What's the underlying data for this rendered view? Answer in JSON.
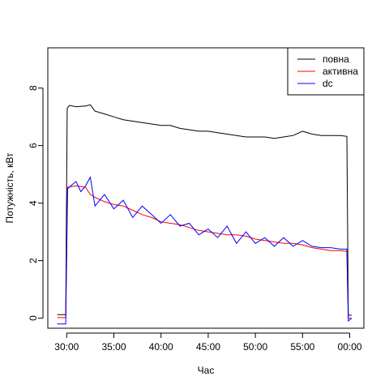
{
  "chart_data": {
    "type": "line",
    "title": "",
    "xlabel": "Час",
    "ylabel": "Потужність, кВт",
    "x_unit": "minute",
    "xlim": [
      28,
      61.5
    ],
    "ylim": [
      -0.35,
      9.4
    ],
    "x_ticks": [
      {
        "value": 30,
        "label": "30:00"
      },
      {
        "value": 35,
        "label": "35:00"
      },
      {
        "value": 40,
        "label": "40:00"
      },
      {
        "value": 45,
        "label": "45:00"
      },
      {
        "value": 50,
        "label": "50:00"
      },
      {
        "value": 55,
        "label": "55:00"
      },
      {
        "value": 60,
        "label": "00:00"
      }
    ],
    "y_ticks": [
      0,
      2,
      4,
      6,
      8
    ],
    "grid": false,
    "legend_position": "top-right",
    "series": [
      {
        "name": "повна",
        "color": "#000000",
        "points": [
          [
            29,
            0.12
          ],
          [
            29.9,
            0.12
          ],
          [
            30.05,
            7.3
          ],
          [
            30.3,
            7.4
          ],
          [
            31,
            7.35
          ],
          [
            32,
            7.38
          ],
          [
            32.5,
            7.42
          ],
          [
            33,
            7.2
          ],
          [
            34,
            7.1
          ],
          [
            35,
            7.0
          ],
          [
            36,
            6.9
          ],
          [
            37,
            6.85
          ],
          [
            38,
            6.8
          ],
          [
            39,
            6.75
          ],
          [
            40,
            6.7
          ],
          [
            41,
            6.7
          ],
          [
            42,
            6.6
          ],
          [
            43,
            6.55
          ],
          [
            44,
            6.5
          ],
          [
            45,
            6.5
          ],
          [
            46,
            6.45
          ],
          [
            47,
            6.4
          ],
          [
            48,
            6.35
          ],
          [
            49,
            6.3
          ],
          [
            50,
            6.3
          ],
          [
            51,
            6.3
          ],
          [
            52,
            6.25
          ],
          [
            53,
            6.3
          ],
          [
            54,
            6.35
          ],
          [
            55,
            6.5
          ],
          [
            56,
            6.4
          ],
          [
            57,
            6.35
          ],
          [
            58,
            6.35
          ],
          [
            59,
            6.35
          ],
          [
            59.7,
            6.32
          ],
          [
            59.85,
            0.1
          ],
          [
            60.2,
            0.1
          ]
        ]
      },
      {
        "name": "активна",
        "color": "#ff0000",
        "points": [
          [
            29,
            0.02
          ],
          [
            29.9,
            0.02
          ],
          [
            30.1,
            4.55
          ],
          [
            31,
            4.6
          ],
          [
            32,
            4.55
          ],
          [
            32.5,
            4.3
          ],
          [
            33,
            4.2
          ],
          [
            34,
            4.05
          ],
          [
            35,
            3.95
          ],
          [
            36,
            3.9
          ],
          [
            37,
            3.75
          ],
          [
            38,
            3.6
          ],
          [
            39,
            3.5
          ],
          [
            40,
            3.35
          ],
          [
            41,
            3.3
          ],
          [
            42,
            3.25
          ],
          [
            43,
            3.15
          ],
          [
            44,
            3.05
          ],
          [
            45,
            3.0
          ],
          [
            46,
            2.95
          ],
          [
            47,
            2.9
          ],
          [
            48,
            2.9
          ],
          [
            49,
            2.85
          ],
          [
            50,
            2.75
          ],
          [
            51,
            2.7
          ],
          [
            52,
            2.65
          ],
          [
            53,
            2.6
          ],
          [
            54,
            2.6
          ],
          [
            55,
            2.55
          ],
          [
            56,
            2.45
          ],
          [
            57,
            2.4
          ],
          [
            58,
            2.35
          ],
          [
            59,
            2.35
          ],
          [
            59.7,
            2.32
          ],
          [
            59.85,
            0.0
          ],
          [
            60.2,
            0.0
          ]
        ]
      },
      {
        "name": "dc",
        "color": "#0000ff",
        "points": [
          [
            29,
            -0.2
          ],
          [
            29.9,
            -0.2
          ],
          [
            30.1,
            4.5
          ],
          [
            30.6,
            4.65
          ],
          [
            31,
            4.75
          ],
          [
            31.5,
            4.4
          ],
          [
            32,
            4.6
          ],
          [
            32.5,
            4.9
          ],
          [
            33,
            3.9
          ],
          [
            34,
            4.3
          ],
          [
            35,
            3.8
          ],
          [
            36,
            4.1
          ],
          [
            37,
            3.5
          ],
          [
            38,
            3.9
          ],
          [
            39,
            3.6
          ],
          [
            40,
            3.3
          ],
          [
            41,
            3.6
          ],
          [
            42,
            3.2
          ],
          [
            43,
            3.3
          ],
          [
            44,
            2.9
          ],
          [
            45,
            3.1
          ],
          [
            46,
            2.8
          ],
          [
            47,
            3.2
          ],
          [
            48,
            2.6
          ],
          [
            49,
            3.0
          ],
          [
            50,
            2.6
          ],
          [
            51,
            2.8
          ],
          [
            52,
            2.5
          ],
          [
            53,
            2.8
          ],
          [
            54,
            2.5
          ],
          [
            55,
            2.7
          ],
          [
            56,
            2.5
          ],
          [
            57,
            2.45
          ],
          [
            58,
            2.45
          ],
          [
            59,
            2.4
          ],
          [
            59.7,
            2.4
          ],
          [
            59.85,
            -0.1
          ],
          [
            60.2,
            0.0
          ]
        ]
      }
    ]
  }
}
